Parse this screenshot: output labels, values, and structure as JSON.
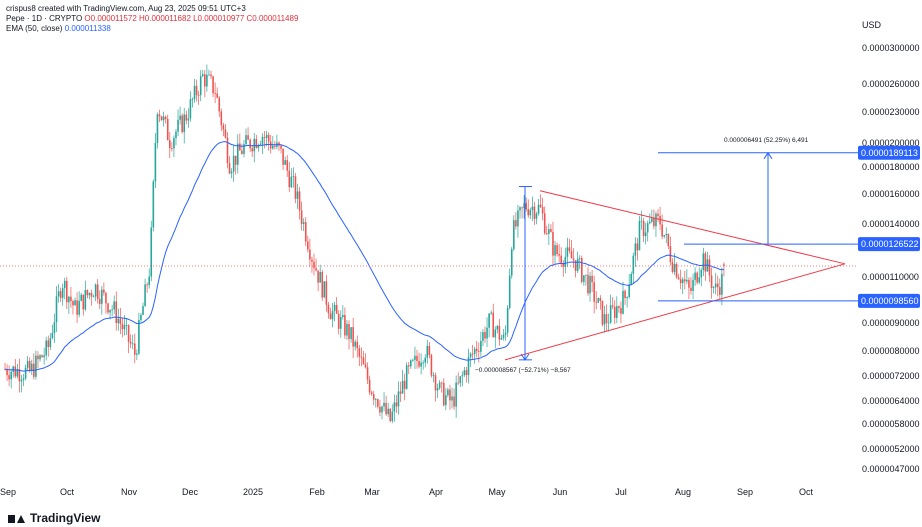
{
  "header": {
    "line1": "crispus8 created with TradingView.com, Aug 23, 2025 09:51 UTC+3",
    "symbol": "Pepe · 1D · CRYPTO",
    "ohlc": "O0.000011572 H0.000011682 L0.000010977 C0.000011489",
    "ema_label": "EMA (50, close)",
    "ema_value": "0.000011338"
  },
  "branding": {
    "logo_text": "TradingView"
  },
  "colors": {
    "up": "#26a69a",
    "down": "#ef5350",
    "ema": "#2962ff",
    "triangle": "#f23645",
    "tag": "#2962ff",
    "last_price": "#ef5350"
  },
  "chart_data": {
    "type": "candlestick",
    "currency_label": "USD",
    "x_ticks": [
      "Sep",
      "Oct",
      "Nov",
      "Dec",
      "2025",
      "Feb",
      "Mar",
      "Apr",
      "May",
      "Jun",
      "Jul",
      "Aug",
      "Sep",
      "Oct"
    ],
    "y_ticks": [
      "0.0000300000",
      "0.0000260000",
      "0.0000230000",
      "0.0000200000",
      "0.0000180000",
      "0.0000160000",
      "0.0000140000",
      "0.0000110000",
      "0.0000090000",
      "0.0000080000",
      "0.0000072000",
      "0.0000064000",
      "0.0000058000",
      "0.0000052000",
      "0.0000047000"
    ],
    "price_tags": [
      "0.0000189113",
      "0.0000126522",
      "0.0000098560"
    ],
    "annotations": {
      "upper": "0.000006491 (52.25%) 6,491",
      "lower": "−0.000008567 (−52.71%) −8,567"
    },
    "key_closes": [
      {
        "date": "2024-09",
        "value": 7.5e-06
      },
      {
        "date": "2024-10",
        "value": 1e-05
      },
      {
        "date": "2024-11",
        "value": 9e-06
      },
      {
        "date": "2024-12",
        "value": 2.4e-05
      },
      {
        "date": "2025-01",
        "value": 1.9e-05
      },
      {
        "date": "2025-02",
        "value": 9e-06
      },
      {
        "date": "2025-03",
        "value": 6.5e-06
      },
      {
        "date": "2025-04",
        "value": 7.8e-06
      },
      {
        "date": "2025-05",
        "value": 1.45e-05
      },
      {
        "date": "2025-06",
        "value": 1e-05
      },
      {
        "date": "2025-07",
        "value": 1.4e-05
      },
      {
        "date": "2025-08",
        "value": 1.1489e-05
      }
    ],
    "last_close": 1.1489e-05,
    "ema_last": 1.1338e-05
  }
}
